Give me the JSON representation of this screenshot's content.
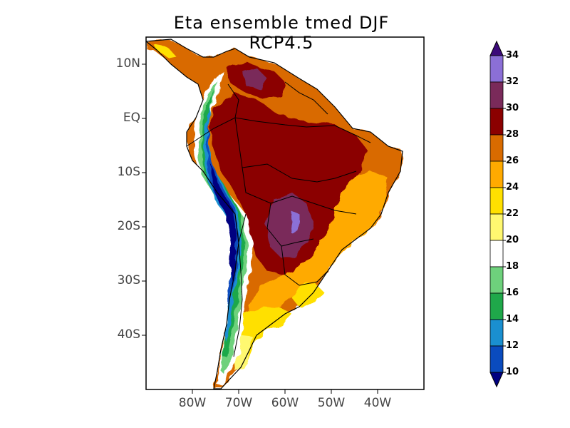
{
  "title": "Eta ensemble tmed DJF RCP4.5",
  "y_axis": {
    "ticks": [
      "10N",
      "EQ",
      "10S",
      "20S",
      "30S",
      "40S"
    ],
    "values": [
      10,
      0,
      -10,
      -20,
      -30,
      -40
    ],
    "range": [
      -50,
      15
    ]
  },
  "x_axis": {
    "ticks": [
      "80W",
      "70W",
      "60W",
      "50W",
      "40W"
    ],
    "values": [
      -80,
      -70,
      -60,
      -50,
      -40
    ],
    "range": [
      -90,
      -30
    ]
  },
  "colorbar": {
    "levels": [
      "10",
      "12",
      "14",
      "16",
      "18",
      "20",
      "22",
      "24",
      "26",
      "28",
      "30",
      "32",
      "34"
    ],
    "colors": [
      "#000080",
      "#0a4bbe",
      "#1a8fd0",
      "#1fa84a",
      "#6ed17c",
      "#ffffff",
      "#fff870",
      "#ffe000",
      "#ffaa00",
      "#d96b00",
      "#8b0000",
      "#7a2a5a",
      "#8b6fd6",
      "#3c0a7a"
    ]
  },
  "chart_data": {
    "type": "heatmap",
    "title": "Eta ensemble tmed DJF RCP4.5",
    "variable": "tmed",
    "lon_range": [
      -90,
      -30
    ],
    "lat_range": [
      -50,
      15
    ],
    "lon_ticks": [
      "80W",
      "70W",
      "60W",
      "50W",
      "40W"
    ],
    "lat_ticks": [
      "10N",
      "EQ",
      "10S",
      "20S",
      "30S",
      "40S"
    ],
    "color_levels": [
      10,
      12,
      14,
      16,
      18,
      20,
      22,
      24,
      26,
      28,
      30,
      32,
      34
    ]
  }
}
